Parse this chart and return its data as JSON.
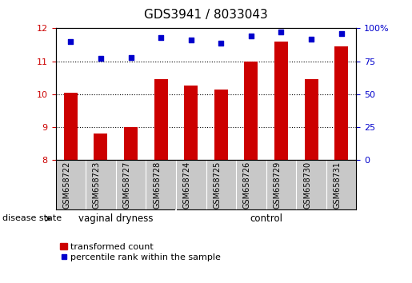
{
  "title": "GDS3941 / 8033043",
  "samples": [
    "GSM658722",
    "GSM658723",
    "GSM658727",
    "GSM658728",
    "GSM658724",
    "GSM658725",
    "GSM658726",
    "GSM658729",
    "GSM658730",
    "GSM658731"
  ],
  "bar_values": [
    10.05,
    8.8,
    9.0,
    10.45,
    10.25,
    10.15,
    11.0,
    11.6,
    10.45,
    11.45
  ],
  "dot_values_pct": [
    90,
    77,
    78,
    93,
    91,
    89,
    94,
    97,
    92,
    96
  ],
  "ylim_left": [
    8,
    12
  ],
  "ylim_right": [
    0,
    100
  ],
  "yticks_left": [
    8,
    9,
    10,
    11,
    12
  ],
  "yticks_right": [
    0,
    25,
    50,
    75,
    100
  ],
  "ytick_labels_right": [
    "0",
    "25",
    "50",
    "75",
    "100%"
  ],
  "bar_color": "#cc0000",
  "dot_color": "#0000cc",
  "group1_label": "vaginal dryness",
  "group2_label": "control",
  "group1_count": 4,
  "group2_count": 6,
  "disease_state_label": "disease state",
  "legend_bar_label": "transformed count",
  "legend_dot_label": "percentile rank within the sample",
  "group_bg_color": "#66ee66",
  "xlabel_bg_color": "#c8c8c8",
  "title_fontsize": 11,
  "tick_fontsize": 8,
  "sample_fontsize": 7
}
